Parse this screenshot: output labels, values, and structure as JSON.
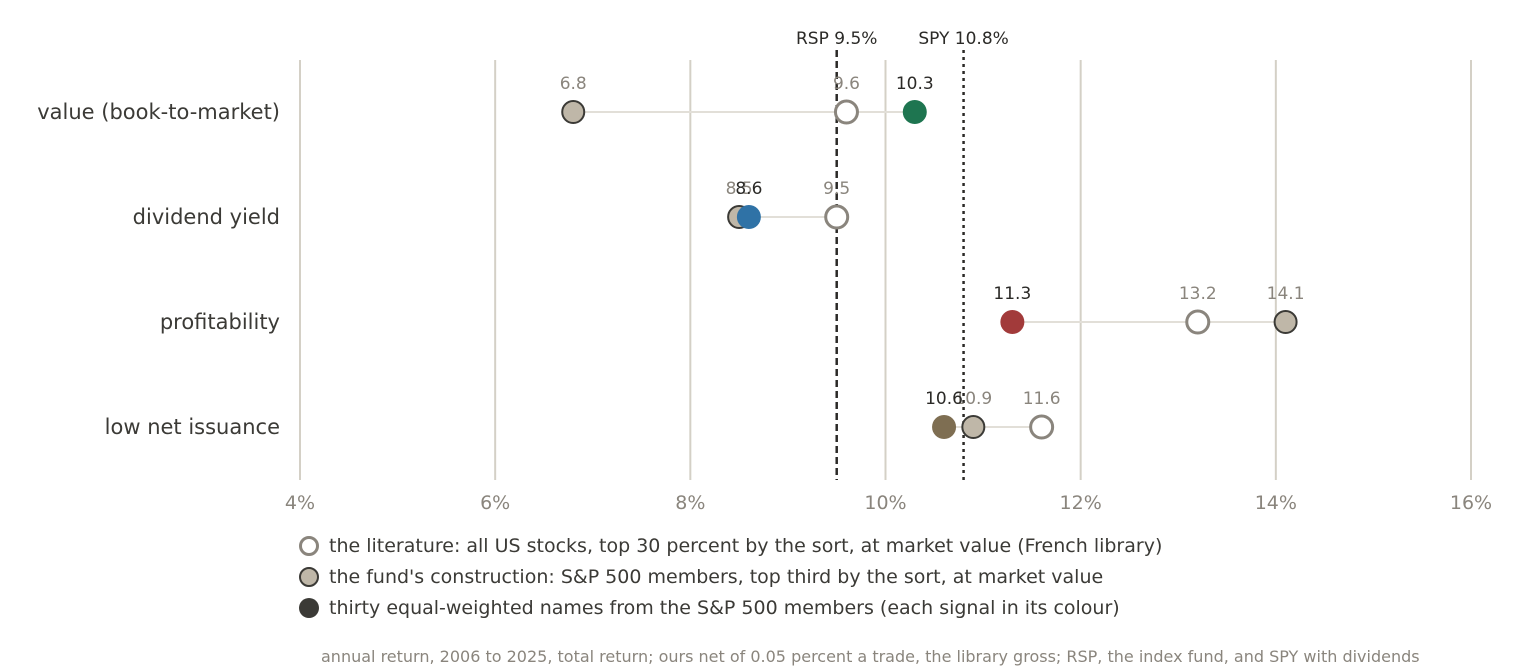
{
  "chart_data": {
    "type": "dot",
    "categories": [
      "value (book-to-market)",
      "dividend yield",
      "profitability",
      "low net issuance"
    ],
    "series": [
      {
        "name": "the literature: all US stocks, top 30 percent by the sort, at market value (French library)",
        "key": "literature",
        "values": [
          9.6,
          9.5,
          13.2,
          11.6
        ]
      },
      {
        "name": "the fund's construction: S&P 500 members, top third by the sort, at market value",
        "key": "fund",
        "values": [
          6.8,
          8.5,
          14.1,
          10.9
        ]
      },
      {
        "name": "thirty equal-weighted names from the S&P 500 members (each signal in its colour)",
        "key": "ours",
        "values": [
          10.3,
          8.6,
          11.3,
          10.6
        ]
      }
    ],
    "point_labels": {
      "literature": [
        "9.6",
        "9.5",
        "13.2",
        "11.6"
      ],
      "fund": [
        "6.8",
        "8.5",
        "14.1",
        "10.9"
      ],
      "ours": [
        "10.3",
        "8.6",
        "11.3",
        "10.6"
      ]
    },
    "signal_colors": [
      "#1e7550",
      "#2f72a6",
      "#a23a3a",
      "#7e6e52"
    ],
    "reference_lines": [
      {
        "label": "RSP 9.5%",
        "value": 9.5,
        "style": "dashed"
      },
      {
        "label": "SPY 10.8%",
        "value": 10.8,
        "style": "dotted"
      }
    ],
    "x_ticks": [
      4,
      6,
      8,
      10,
      12,
      14,
      16
    ],
    "x_tick_labels": [
      "4%",
      "6%",
      "8%",
      "10%",
      "12%",
      "14%",
      "16%"
    ],
    "xlim": [
      4,
      16
    ],
    "grid": true,
    "legend_position": "bottom",
    "note": "annual return, 2006 to 2025, total return; ours net of 0.05 percent a trade, the library gross; RSP, the index fund, and SPY with dividends",
    "colors": {
      "grid": "#d4d0c6",
      "connector": "#e2dfd8",
      "literature_stroke": "#8a857d",
      "fund_fill": "#bfb7a8",
      "fund_stroke": "#3b3a36",
      "ours_legend": "#3b3a36"
    }
  }
}
